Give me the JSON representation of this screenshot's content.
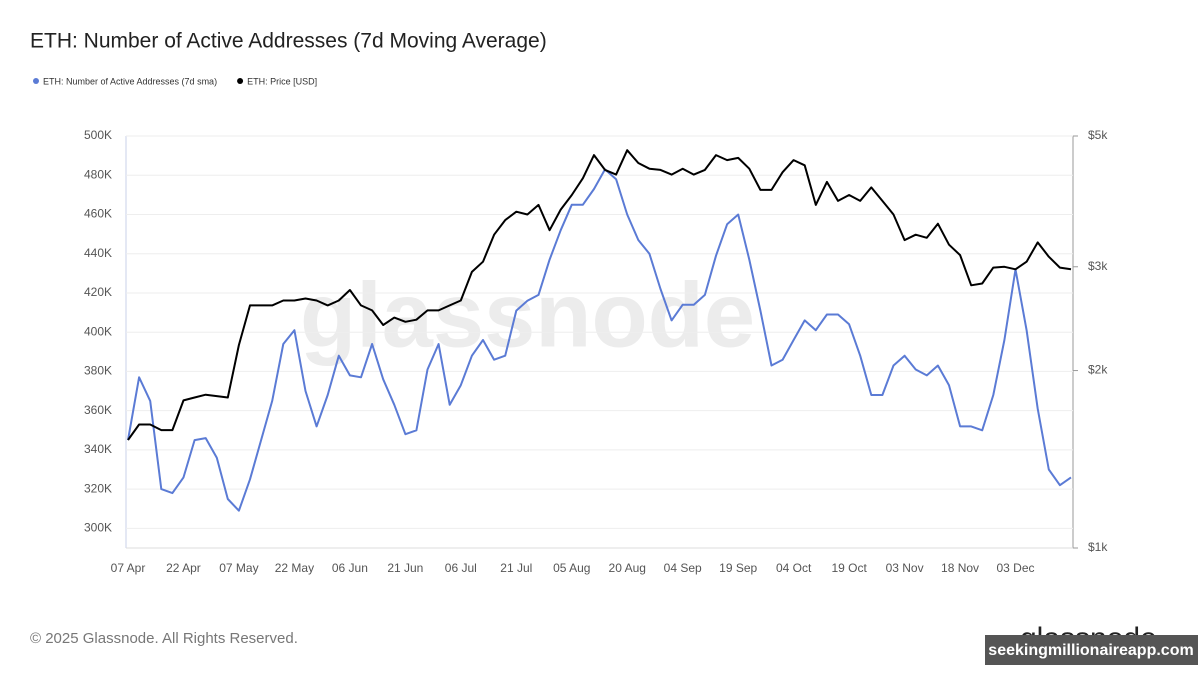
{
  "chart_data": {
    "type": "line",
    "title": "ETH: Number of Active Addresses (7d Moving Average)",
    "watermark": "glassnode",
    "footer": "© 2025 Glassnode. All Rights Reserved.",
    "logo": "glassnode",
    "badge": "seekingmillionaireapp.com",
    "legend": "top-left",
    "grid": true,
    "y2log": true,
    "categories": [
      "07 Apr",
      null,
      null,
      null,
      null,
      "22 Apr",
      null,
      null,
      null,
      null,
      "07 May",
      null,
      null,
      null,
      null,
      "22 May",
      null,
      null,
      null,
      null,
      "06 Jun",
      null,
      null,
      null,
      null,
      "21 Jun",
      null,
      null,
      null,
      null,
      "06 Jul",
      null,
      null,
      null,
      null,
      "21 Jul",
      null,
      null,
      null,
      null,
      "05 Aug",
      null,
      null,
      null,
      null,
      "20 Aug",
      null,
      null,
      null,
      null,
      "04 Sep",
      null,
      null,
      null,
      null,
      "19 Sep",
      null,
      null,
      null,
      null,
      "04 Oct",
      null,
      null,
      null,
      null,
      "19 Oct",
      null,
      null,
      null,
      null,
      "03 Nov",
      null,
      null,
      null,
      null,
      "18 Nov",
      null,
      null,
      null,
      null,
      "03 Dec",
      null,
      null,
      null,
      null,
      null
    ],
    "ylim": [
      290000,
      500000
    ],
    "yticks": [
      {
        "value": 300000,
        "label": "300K"
      },
      {
        "value": 320000,
        "label": "320K"
      },
      {
        "value": 340000,
        "label": "340K"
      },
      {
        "value": 360000,
        "label": "360K"
      },
      {
        "value": 380000,
        "label": "380K"
      },
      {
        "value": 400000,
        "label": "400K"
      },
      {
        "value": 420000,
        "label": "420K"
      },
      {
        "value": 440000,
        "label": "440K"
      },
      {
        "value": 460000,
        "label": "460K"
      },
      {
        "value": 480000,
        "label": "480K"
      },
      {
        "value": 500000,
        "label": "500K"
      }
    ],
    "y2lim": [
      1000,
      5000
    ],
    "y2ticks": [
      {
        "value": 1000,
        "label": "$1k"
      },
      {
        "value": 2000,
        "label": "$2k"
      },
      {
        "value": 3000,
        "label": "$3k"
      },
      {
        "value": 5000,
        "label": "$5k"
      }
    ],
    "series": [
      {
        "name": "ETH: Number of Active Addresses (7d sma)",
        "color": "#5b7bd5",
        "values": [
          345000,
          377000,
          365000,
          320000,
          318000,
          326000,
          345000,
          346000,
          336000,
          315000,
          309000,
          325000,
          345000,
          365000,
          394000,
          401000,
          370000,
          352000,
          368000,
          388000,
          378000,
          377000,
          394000,
          376000,
          363000,
          348000,
          350000,
          381000,
          394000,
          363000,
          373000,
          388000,
          396000,
          386000,
          388000,
          411000,
          416000,
          419000,
          437000,
          452000,
          465000,
          465000,
          473000,
          483000,
          478000,
          460000,
          447000,
          440000,
          422000,
          406000,
          414000,
          414000,
          419000,
          439000,
          455000,
          460000,
          437000,
          411000,
          383000,
          386000,
          396000,
          406000,
          401000,
          409000,
          409000,
          404000,
          388000,
          368000,
          368000,
          383000,
          388000,
          381000,
          378000,
          383000,
          373000,
          352000,
          352000,
          350000,
          368000,
          396000,
          432000,
          401000,
          361000,
          330000,
          322000,
          326000
        ]
      },
      {
        "name": "ETH: Price [USD]",
        "color": "#000000",
        "axis": "y2",
        "values": [
          1525,
          1620,
          1620,
          1585,
          1585,
          1780,
          1800,
          1820,
          1810,
          1800,
          2210,
          2580,
          2580,
          2580,
          2630,
          2630,
          2650,
          2630,
          2580,
          2630,
          2740,
          2580,
          2530,
          2390,
          2460,
          2420,
          2440,
          2530,
          2530,
          2580,
          2630,
          2940,
          3060,
          3400,
          3600,
          3720,
          3680,
          3820,
          3460,
          3750,
          3970,
          4240,
          4640,
          4380,
          4300,
          4730,
          4500,
          4400,
          4380,
          4300,
          4400,
          4300,
          4380,
          4640,
          4550,
          4590,
          4400,
          4050,
          4050,
          4340,
          4550,
          4460,
          3820,
          4180,
          3880,
          3970,
          3880,
          4090,
          3880,
          3680,
          3330,
          3400,
          3360,
          3550,
          3270,
          3140,
          2790,
          2810,
          2990,
          3000,
          2970,
          3060,
          3300,
          3120,
          2990,
          2970
        ]
      }
    ]
  }
}
